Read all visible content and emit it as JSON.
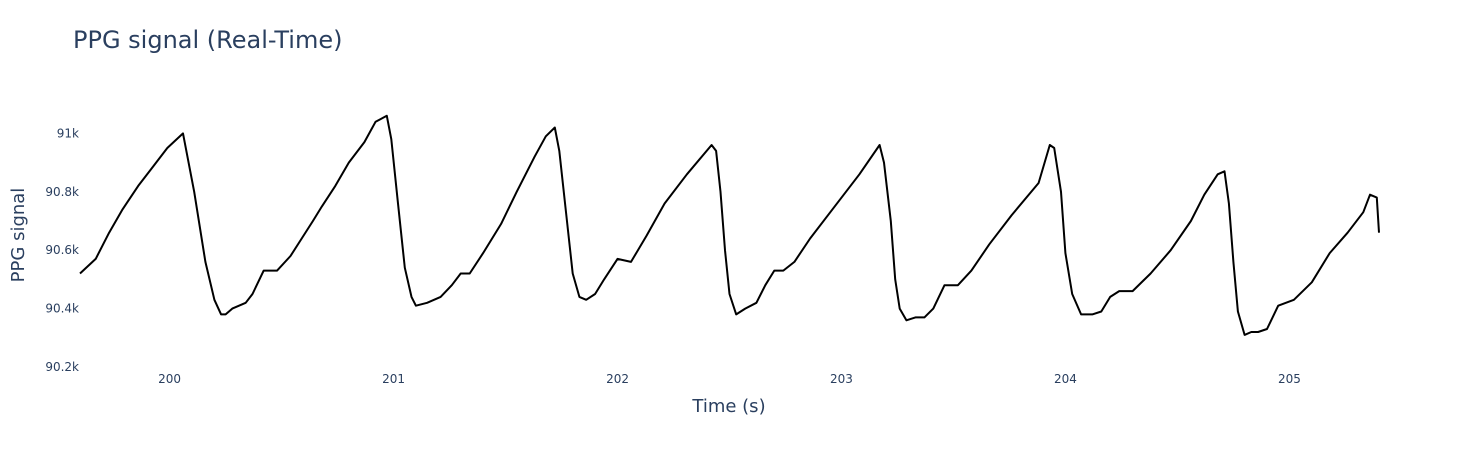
{
  "chart_data": {
    "type": "line",
    "title": "PPG signal (Real-Time)",
    "xlabel": "Time (s)",
    "ylabel": "PPG signal",
    "xlim": [
      199.6,
      205.4
    ],
    "ylim": [
      90200,
      91080
    ],
    "x_ticks": [
      {
        "value": 200,
        "label": "200"
      },
      {
        "value": 201,
        "label": "201"
      },
      {
        "value": 202,
        "label": "202"
      },
      {
        "value": 203,
        "label": "203"
      },
      {
        "value": 204,
        "label": "204"
      },
      {
        "value": 205,
        "label": "205"
      }
    ],
    "y_ticks": [
      {
        "value": 90200,
        "label": "90.2k"
      },
      {
        "value": 90400,
        "label": "90.4k"
      },
      {
        "value": 90600,
        "label": "90.6k"
      },
      {
        "value": 90800,
        "label": "90.8k"
      },
      {
        "value": 91000,
        "label": "91k"
      }
    ],
    "grid": false,
    "legend": false,
    "line_color": "#000000",
    "series": [
      {
        "x": [
          199.6,
          199.67,
          199.73,
          199.79,
          199.86,
          199.92,
          199.99,
          200.06,
          200.11,
          200.16,
          200.2,
          200.23,
          200.25,
          200.28,
          200.31,
          200.34,
          200.37,
          200.42,
          200.48,
          200.54,
          200.59,
          200.64,
          200.68,
          200.74,
          200.8,
          200.87,
          200.92,
          200.97,
          200.99,
          201.02,
          201.05,
          201.08,
          201.1,
          201.15,
          201.21,
          201.26,
          201.3,
          201.34,
          201.4,
          201.48,
          201.55,
          201.63,
          201.68,
          201.72,
          201.74,
          201.77,
          201.8,
          201.83,
          201.86,
          201.9,
          201.94,
          202.0,
          202.06,
          202.13,
          202.21,
          202.31,
          202.42,
          202.44,
          202.46,
          202.48,
          202.5,
          202.53,
          202.57,
          202.62,
          202.66,
          202.7,
          202.74,
          202.79,
          202.86,
          202.96,
          203.08,
          203.17,
          203.19,
          203.22,
          203.24,
          203.26,
          203.29,
          203.33,
          203.37,
          203.41,
          203.46,
          203.52,
          203.58,
          203.66,
          203.76,
          203.88,
          203.93,
          203.95,
          203.98,
          204.0,
          204.03,
          204.07,
          204.12,
          204.16,
          204.2,
          204.24,
          204.3,
          204.38,
          204.47,
          204.56,
          204.62,
          204.68,
          204.71,
          204.73,
          204.75,
          204.77,
          204.8,
          204.83,
          204.86,
          204.9,
          204.95,
          205.02,
          205.1,
          205.18,
          205.26,
          205.33,
          205.36,
          205.39,
          205.4
        ],
        "y": [
          90520,
          90570,
          90660,
          90740,
          90820,
          90880,
          90950,
          91000,
          90800,
          90560,
          90430,
          90380,
          90380,
          90400,
          90410,
          90420,
          90450,
          90530,
          90530,
          90580,
          90640,
          90700,
          90750,
          90820,
          90900,
          90970,
          91040,
          91060,
          90980,
          90760,
          90540,
          90440,
          90410,
          90420,
          90440,
          90480,
          90520,
          90520,
          90590,
          90690,
          90800,
          90920,
          90990,
          91020,
          90940,
          90730,
          90520,
          90440,
          90430,
          90450,
          90500,
          90570,
          90560,
          90650,
          90760,
          90860,
          90960,
          90940,
          90800,
          90600,
          90450,
          90380,
          90400,
          90420,
          90480,
          90530,
          90530,
          90560,
          90640,
          90740,
          90860,
          90960,
          90900,
          90700,
          90500,
          90400,
          90360,
          90370,
          90370,
          90400,
          90480,
          90480,
          90530,
          90620,
          90720,
          90830,
          90960,
          90950,
          90800,
          90590,
          90450,
          90380,
          90380,
          90390,
          90440,
          90460,
          90460,
          90520,
          90600,
          90700,
          90790,
          90860,
          90870,
          90760,
          90560,
          90390,
          90310,
          90320,
          90320,
          90330,
          90410,
          90430,
          90490,
          90590,
          90660,
          90730,
          90790,
          90780,
          90660
        ]
      }
    ]
  }
}
